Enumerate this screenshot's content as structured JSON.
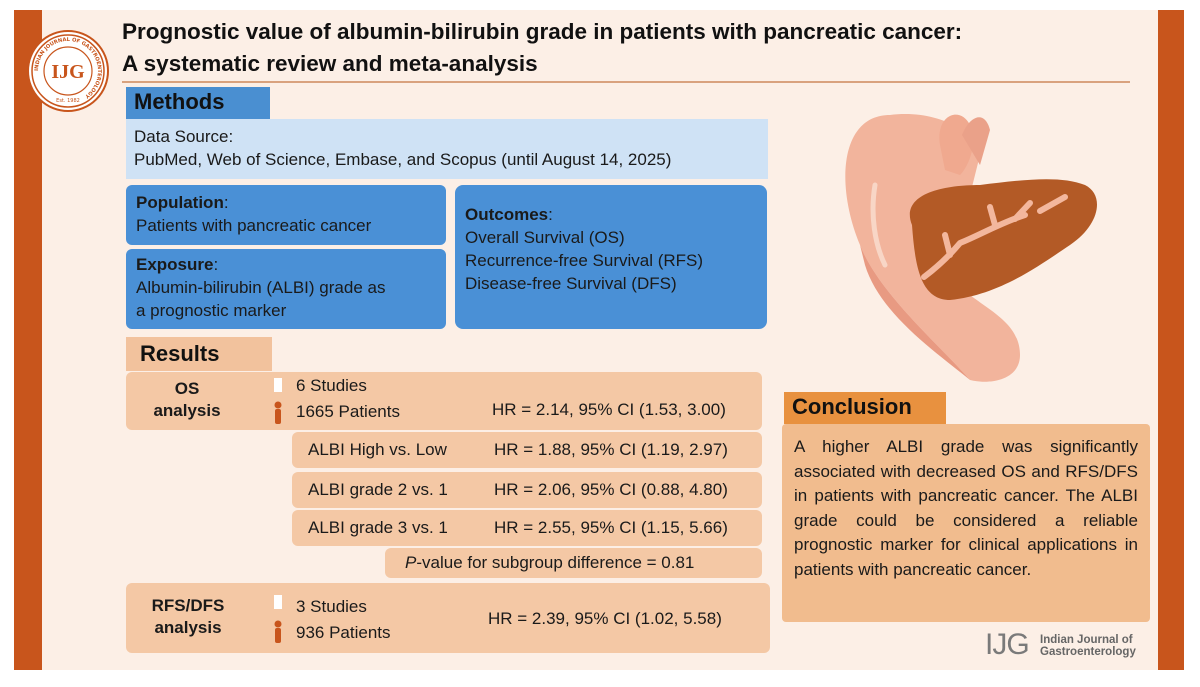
{
  "title": {
    "line1": "Prognostic value of albumin-bilirubin grade in patients with pancreatic cancer:",
    "line2": "A systematic review and meta-analysis"
  },
  "logo": {
    "icon": "journal-seal-icon",
    "letters": "IJG",
    "ring_text": "INDIAN JOURNAL OF GASTROENTEROLOGY",
    "est": "Est. 1982"
  },
  "methods": {
    "header": "Methods",
    "data_source": {
      "label": "Data Source:",
      "text": "PubMed, Web of Science, Embase, and Scopus (until August 14, 2025)"
    },
    "population": {
      "label": "Population",
      "colon": ":",
      "text": "Patients with pancreatic cancer"
    },
    "exposure": {
      "label": "Exposure",
      "colon": ":",
      "line1": "Albumin-bilirubin (ALBI) grade as",
      "line2": "a prognostic marker"
    },
    "outcomes": {
      "label": "Outcomes",
      "colon": ":",
      "items": [
        "Overall Survival (OS)",
        "Recurrence-free Survival (RFS)",
        "Disease-free Survival (DFS)"
      ]
    }
  },
  "results": {
    "header": "Results",
    "os": {
      "label_line1": "OS",
      "label_line2": "analysis",
      "studies": "6 Studies",
      "patients": "1665 Patients",
      "hr": "HR = 2.14, 95% CI (1.53, 3.00)",
      "subgroups": [
        {
          "name": "ALBI High vs. Low",
          "hr": "HR = 1.88, 95% CI (1.19, 2.97)"
        },
        {
          "name": "ALBI grade 2 vs. 1",
          "hr": "HR = 2.06, 95% CI (0.88, 4.80)"
        },
        {
          "name": "ALBI grade 3 vs. 1",
          "hr": "HR = 2.55, 95% CI (1.15, 5.66)"
        }
      ],
      "p_value_prefix": "P",
      "p_value_rest": "-value for subgroup difference = 0.81"
    },
    "rfs": {
      "label_line1": "RFS/DFS",
      "label_line2": "analysis",
      "studies": "3 Studies",
      "patients": "936 Patients",
      "hr": "HR = 2.39, 95% CI (1.02, 5.58)"
    }
  },
  "conclusion": {
    "header": "Conclusion",
    "text": "A higher ALBI grade was significantly associated with decreased OS and RFS/DFS in patients with pancreatic cancer. The ALBI grade could be considered a reliable prognostic marker for clinical applications in patients with pancreatic cancer."
  },
  "footer": {
    "mark": "IJG",
    "name_line1": "Indian Journal of",
    "name_line2": "Gastroenterology"
  },
  "colors": {
    "accent": "#c8551c",
    "blue": "#4a90d6",
    "light_blue": "#cfe2f5",
    "peach": "#f4c8a5",
    "orange": "#e8913f"
  }
}
